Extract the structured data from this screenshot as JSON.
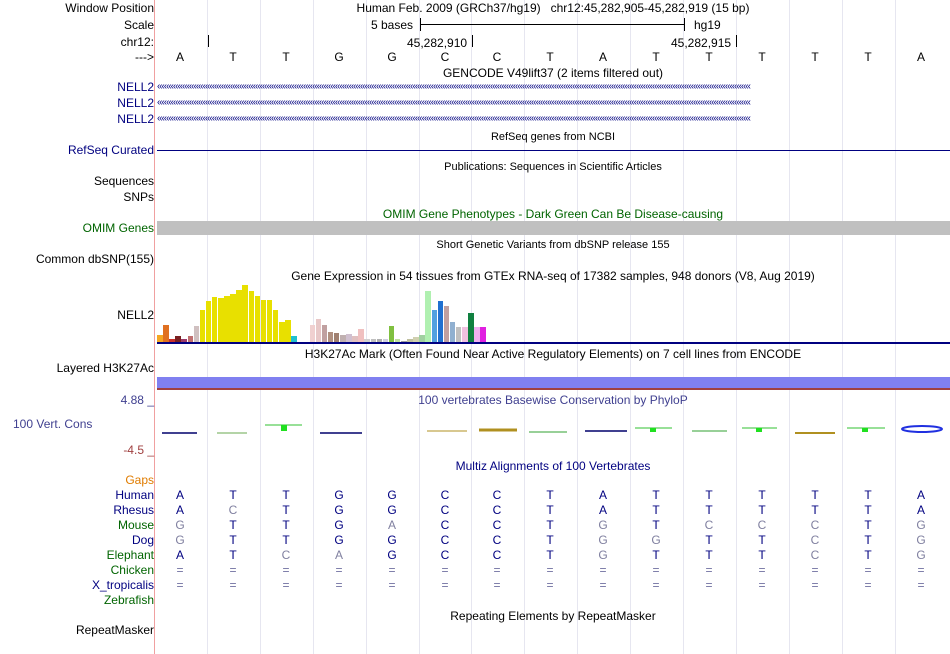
{
  "header": {
    "window_position_label": "Window Position",
    "window_position_value": "Human Feb. 2009 (GRCh37/hg19)   chr12:45,282,905-45,282,919 (15 bp)",
    "scale_label": "Scale",
    "scale_bases": "5 bases",
    "scale_assembly": "hg19",
    "chr_label": "chr12:",
    "coord_left": "45,282,910",
    "coord_right": "45,282,915",
    "strand_label": "--->"
  },
  "bases": [
    "A",
    "T",
    "T",
    "G",
    "G",
    "C",
    "C",
    "T",
    "A",
    "T",
    "T",
    "T",
    "T",
    "T",
    "A"
  ],
  "gencode": {
    "title": "GENCODE V49lift37 (2 items filtered out)",
    "rows": [
      "NELL2",
      "NELL2",
      "NELL2"
    ]
  },
  "refseq": {
    "title": "RefSeq genes from NCBI",
    "label": "RefSeq Curated"
  },
  "publications": {
    "title": "Publications: Sequences in Scientific Articles",
    "label1": "Sequences",
    "label2": "SNPs"
  },
  "omim": {
    "title": "OMIM Gene Phenotypes - Dark Green Can Be Disease-causing",
    "label": "OMIM Genes"
  },
  "dbsnp": {
    "title": "Short Genetic Variants from dbSNP release 155",
    "label": "Common dbSNP(155)"
  },
  "gtex": {
    "title": "Gene Expression in 54 tissues from GTEx RNA-seq of 17382 samples, 948 donors (V8, Aug 2019)",
    "label": "NELL2",
    "levels": [
      0.12,
      0.3,
      0.05,
      0.1,
      0.06,
      0.1,
      0.28,
      0.55,
      0.7,
      0.78,
      0.75,
      0.8,
      0.82,
      0.9,
      0.98,
      0.88,
      0.8,
      0.72,
      0.72,
      0.55,
      0.35,
      0.38,
      0.1,
      0,
      0,
      0.3,
      0.4,
      0.3,
      0.18,
      0.15,
      0.12,
      0.14,
      0.1,
      0.22,
      0.06,
      0.05,
      0.05,
      0.05,
      0.28,
      0.05,
      0.02,
      0.06,
      0.08,
      0.12,
      0.88,
      0.56,
      0.7,
      0.62,
      0.35,
      0.26,
      0.25,
      0.5,
      0.26,
      0.26
    ],
    "colors": [
      "#f5a623",
      "#e07020",
      "#c9302c",
      "#7a2020",
      "#9b3a6a",
      "#c07070",
      "#d0c0c0",
      "#e8e000",
      "#e8e000",
      "#e8e000",
      "#e8e000",
      "#e8e000",
      "#e8e000",
      "#e8e000",
      "#e8e000",
      "#e8e000",
      "#e8e000",
      "#e8e000",
      "#e8e000",
      "#e8e000",
      "#e8e000",
      "#e8e000",
      "#20c0d0",
      "#ffffff",
      "#ffffff",
      "#f0d0d0",
      "#e8c8c8",
      "#c0a0a0",
      "#b09080",
      "#a08070",
      "#c0b0b0",
      "#d0c0d0",
      "#e0c0c0",
      "#f0c0c0",
      "#d0d0d0",
      "#c0c0c0",
      "#b0b0b0",
      "#d0d0e0",
      "#80c040",
      "#c0e0a0",
      "#a0a0a0",
      "#c0c0a0",
      "#d0d0b0",
      "#a0d0a0",
      "#b0f0b0",
      "#50a0e0",
      "#2070d0",
      "#c0a0a0",
      "#90b0d0",
      "#c0c0c0",
      "#f0c0e0",
      "#108040",
      "#f0b0f0",
      "#e020e0"
    ]
  },
  "h3k27ac": {
    "title": "H3K27Ac Mark (Often Found Near Active Regulatory Elements) on 7 cell lines from ENCODE",
    "label": "Layered H3K27Ac"
  },
  "phylop": {
    "title": "100 vertebrates Basewise Conservation by PhyloP",
    "label": "100 Vert. Cons",
    "ymax": "4.88 _",
    "ymin": "-4.5 _"
  },
  "multiz": {
    "title": "Multiz Alignments of 100 Vertebrates",
    "gaps_label": "Gaps",
    "species": [
      {
        "name": "Human",
        "color": "#000080",
        "seq": [
          "A",
          "T",
          "T",
          "G",
          "G",
          "C",
          "C",
          "T",
          "A",
          "T",
          "T",
          "T",
          "T",
          "T",
          "A"
        ]
      },
      {
        "name": "Rhesus",
        "color": "#000080",
        "seq": [
          "A",
          "C",
          "T",
          "G",
          "G",
          "C",
          "C",
          "T",
          "A",
          "T",
          "T",
          "T",
          "T",
          "T",
          "A"
        ]
      },
      {
        "name": "Mouse",
        "color": "#006400",
        "seq": [
          "G",
          "T",
          "T",
          "G",
          "A",
          "C",
          "C",
          "T",
          "G",
          "T",
          "C",
          "C",
          "C",
          "T",
          "G"
        ]
      },
      {
        "name": "Dog",
        "color": "#000080",
        "seq": [
          "G",
          "T",
          "T",
          "G",
          "G",
          "C",
          "C",
          "T",
          "G",
          "G",
          "T",
          "T",
          "C",
          "T",
          "G"
        ]
      },
      {
        "name": "Elephant",
        "color": "#006400",
        "seq": [
          "A",
          "T",
          "C",
          "A",
          "G",
          "C",
          "C",
          "T",
          "G",
          "T",
          "T",
          "T",
          "C",
          "T",
          "G"
        ]
      },
      {
        "name": "Chicken",
        "color": "#006400",
        "seq": [
          "=",
          "=",
          "=",
          "=",
          "=",
          "=",
          "=",
          "=",
          "=",
          "=",
          "=",
          "=",
          "=",
          "=",
          "="
        ]
      },
      {
        "name": "X_tropicalis",
        "color": "#000080",
        "seq": [
          "=",
          "=",
          "=",
          "=",
          "=",
          "=",
          "=",
          "=",
          "=",
          "=",
          "=",
          "=",
          "=",
          "=",
          "="
        ]
      },
      {
        "name": "Zebrafish",
        "color": "#006400",
        "seq": [
          "",
          "",
          "",
          "",
          "",
          "",
          "",
          "",
          "",
          "",
          "",
          "",
          "",
          "",
          ""
        ]
      }
    ]
  },
  "repeatmasker": {
    "title": "Repeating Elements by RepeatMasker",
    "label": "RepeatMasker"
  },
  "colors": {
    "gene_blue": "#000080",
    "omim_gray": "#c0c0c0",
    "h3k27ac_blue": "#8080f0",
    "phylop_blue": "#404090",
    "gaps_orange": "#e07c00",
    "left_border": "#f0a0a0"
  }
}
